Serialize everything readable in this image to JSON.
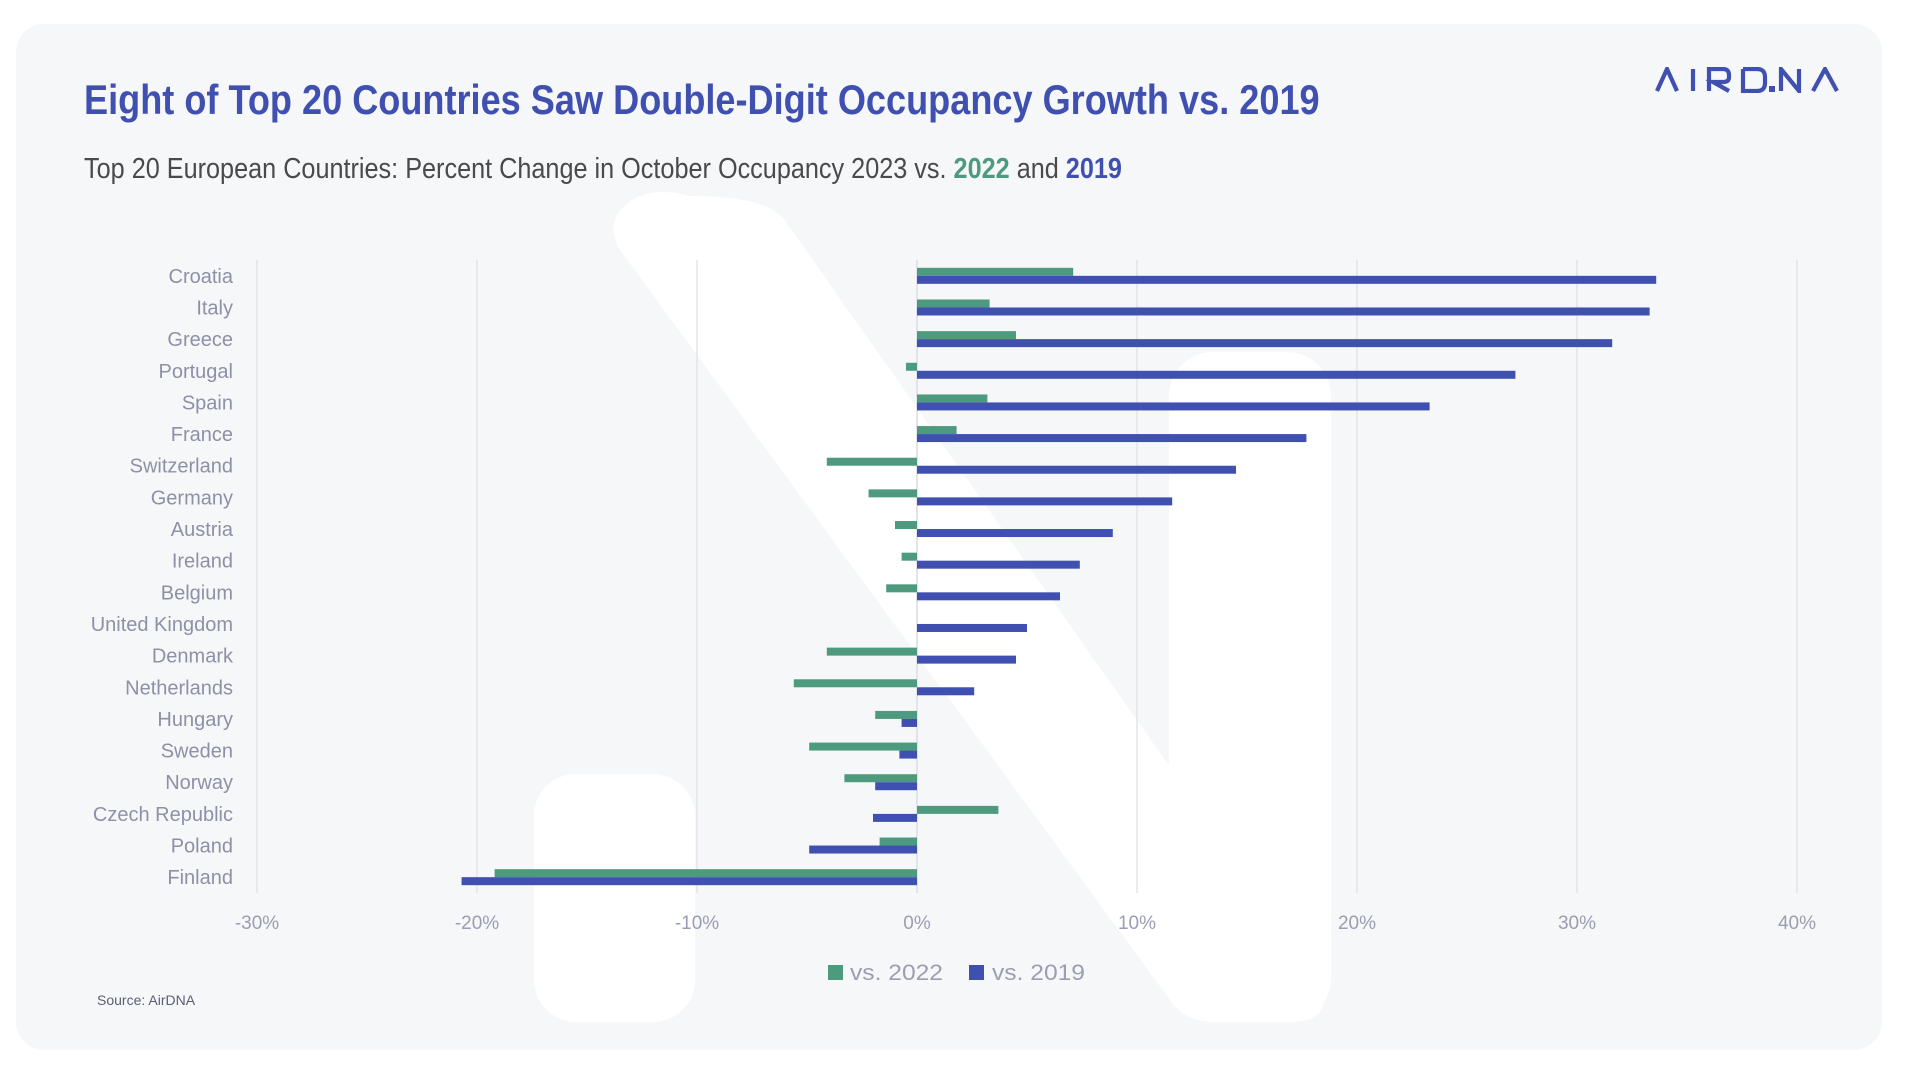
{
  "header": {
    "title": "Eight of Top 20 Countries Saw Double-Digit Occupancy Growth vs. 2019",
    "subtitle_prefix": "Top 20 European Countries: Percent Change in October Occupancy 2023 vs. ",
    "subtitle_year_a": "2022",
    "subtitle_mid": " and ",
    "subtitle_year_b": "2019",
    "logo_text": "AIRDNA",
    "logo_icon": "airdna-logo-icon"
  },
  "colors": {
    "brand": "#4050b0",
    "vs_2022": "#4e9a7e",
    "vs_2019": "#4050b0",
    "subtitle_text": "#4a4a4a",
    "axis_text": "#9b9db2",
    "gridline": "#e3e4ea",
    "card_background": "#f6f7f9"
  },
  "chart_data": {
    "type": "bar",
    "orientation": "horizontal",
    "title": "Eight of Top 20 Countries Saw Double-Digit Occupancy Growth vs. 2019",
    "subtitle": "Top 20 European Countries: Percent Change in October Occupancy 2023 vs. 2022 and 2019",
    "categories": [
      "Croatia",
      "Italy",
      "Greece",
      "Portugal",
      "Spain",
      "France",
      "Switzerland",
      "Germany",
      "Austria",
      "Ireland",
      "Belgium",
      "United Kingdom",
      "Denmark",
      "Netherlands",
      "Hungary",
      "Sweden",
      "Norway",
      "Czech Republic",
      "Poland",
      "Finland"
    ],
    "series": [
      {
        "name": "vs. 2022",
        "color": "#4e9a7e",
        "values": [
          7.1,
          3.3,
          4.5,
          -0.5,
          3.2,
          1.8,
          -4.1,
          -2.2,
          -1.0,
          -0.7,
          -1.4,
          0.0,
          -4.1,
          -5.6,
          -1.9,
          -4.9,
          -3.3,
          3.7,
          -1.7,
          -19.2
        ]
      },
      {
        "name": "vs. 2019",
        "color": "#4050b0",
        "values": [
          33.6,
          33.3,
          31.6,
          27.2,
          23.3,
          17.7,
          14.5,
          11.6,
          8.9,
          7.4,
          6.5,
          5.0,
          4.5,
          2.6,
          -0.7,
          -0.8,
          -1.9,
          -2.0,
          -4.9,
          -20.7
        ]
      }
    ],
    "xlabel": "",
    "ylabel": "",
    "xlim": [
      -30,
      40
    ],
    "x_ticks": [
      -30,
      -20,
      -10,
      0,
      10,
      20,
      30,
      40
    ],
    "x_tick_labels": [
      "-30%",
      "-20%",
      "-10%",
      "0%",
      "10%",
      "20%",
      "30%",
      "40%"
    ],
    "units": "percent",
    "grid": "vertical",
    "legend": {
      "position": "bottom",
      "entries": [
        "vs. 2022",
        "vs. 2019"
      ]
    }
  },
  "footer": {
    "source": "Source: AirDNA"
  }
}
